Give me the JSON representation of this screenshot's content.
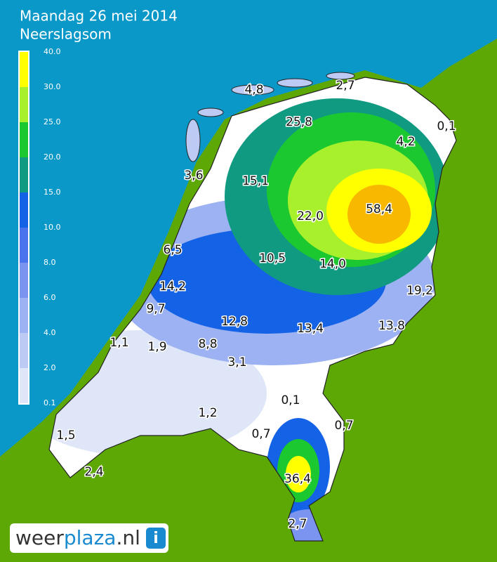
{
  "header": {
    "title": "Maandag 26 mei 2014",
    "subtitle": "Neerslagsom"
  },
  "legend": {
    "labels": [
      "40.0",
      "30.0",
      "25.0",
      "20.0",
      "15.0",
      "10.0",
      "8.0",
      "6.0",
      "4.0",
      "2.0",
      "0.1"
    ],
    "colors": [
      "#ffff00",
      "#a8f02c",
      "#1cc830",
      "#109a82",
      "#1462e6",
      "#4a74ee",
      "#7a94f0",
      "#9cb2f2",
      "#bccaf4",
      "#dfe6f8"
    ]
  },
  "stations": [
    "4,8",
    "2,7",
    "0,1",
    "25,8",
    "4,2",
    "3,6",
    "15,1",
    "58,4",
    "22,0",
    "6,5",
    "10,5",
    "14,0",
    "19,2",
    "14,2",
    "9,7",
    "12,8",
    "13,4",
    "13,8",
    "1,1",
    "1,9",
    "8,8",
    "3,1",
    "0,1",
    "0,7",
    "0,7",
    "1,2",
    "1,5",
    "2,4",
    "36,4",
    "2,7"
  ],
  "logo": {
    "parts": [
      "weer",
      "plaza",
      ".nl"
    ],
    "icon": "i"
  }
}
